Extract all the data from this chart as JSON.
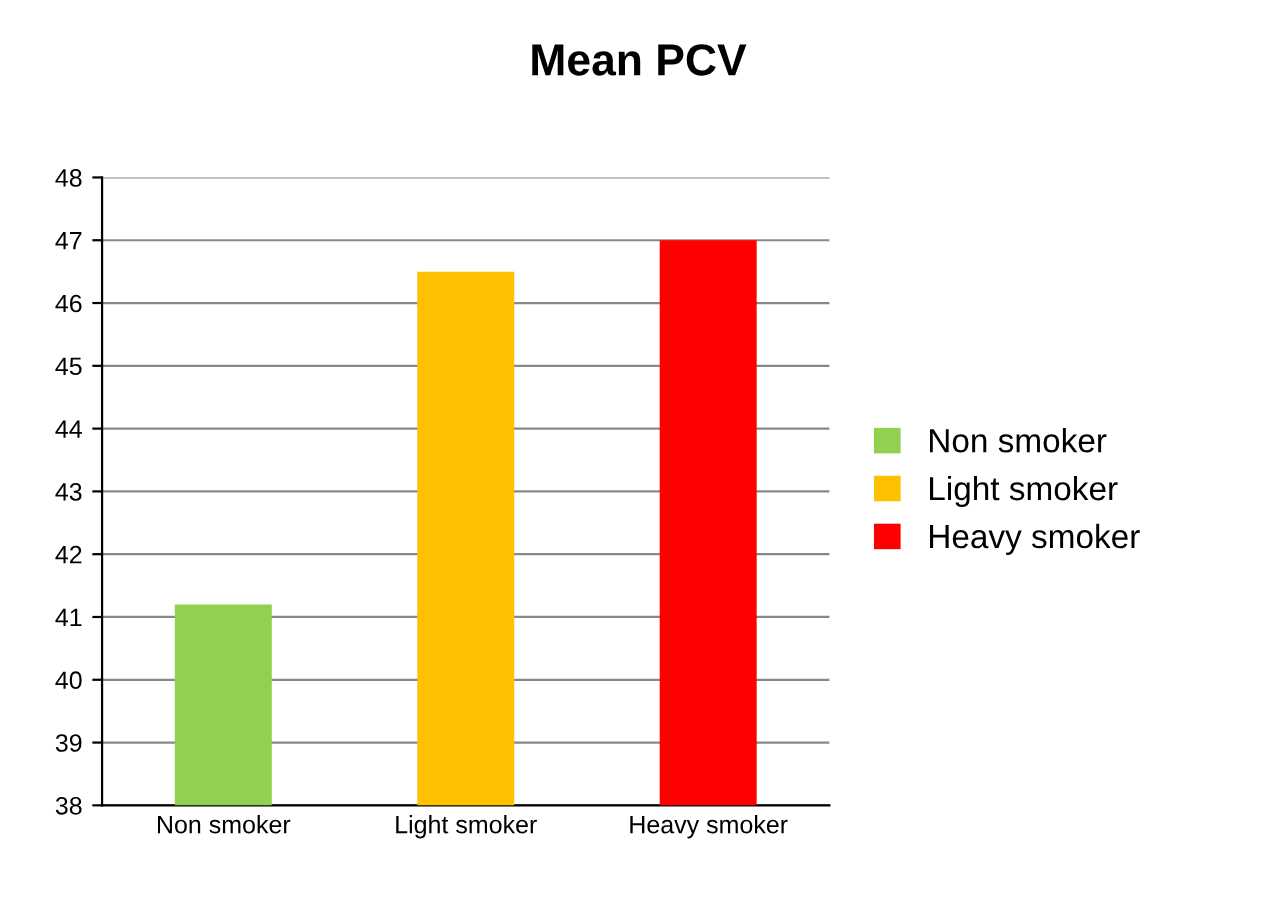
{
  "chart_data": {
    "type": "bar",
    "title": "Mean PCV",
    "categories": [
      "Non smoker",
      "Light smoker",
      "Heavy smoker"
    ],
    "series": [
      {
        "name": "Non smoker",
        "color": "#92d050",
        "values": [
          41.2,
          null,
          null
        ]
      },
      {
        "name": "Light smoker",
        "color": "#ffc000",
        "values": [
          null,
          46.5,
          null
        ]
      },
      {
        "name": "Heavy smoker",
        "color": "#ff0000",
        "values": [
          null,
          null,
          47.0
        ]
      }
    ],
    "ylim": [
      38,
      48
    ],
    "yticks": [
      38,
      39,
      40,
      41,
      42,
      43,
      44,
      45,
      46,
      47,
      48
    ],
    "grid": "y",
    "legend": "right"
  }
}
